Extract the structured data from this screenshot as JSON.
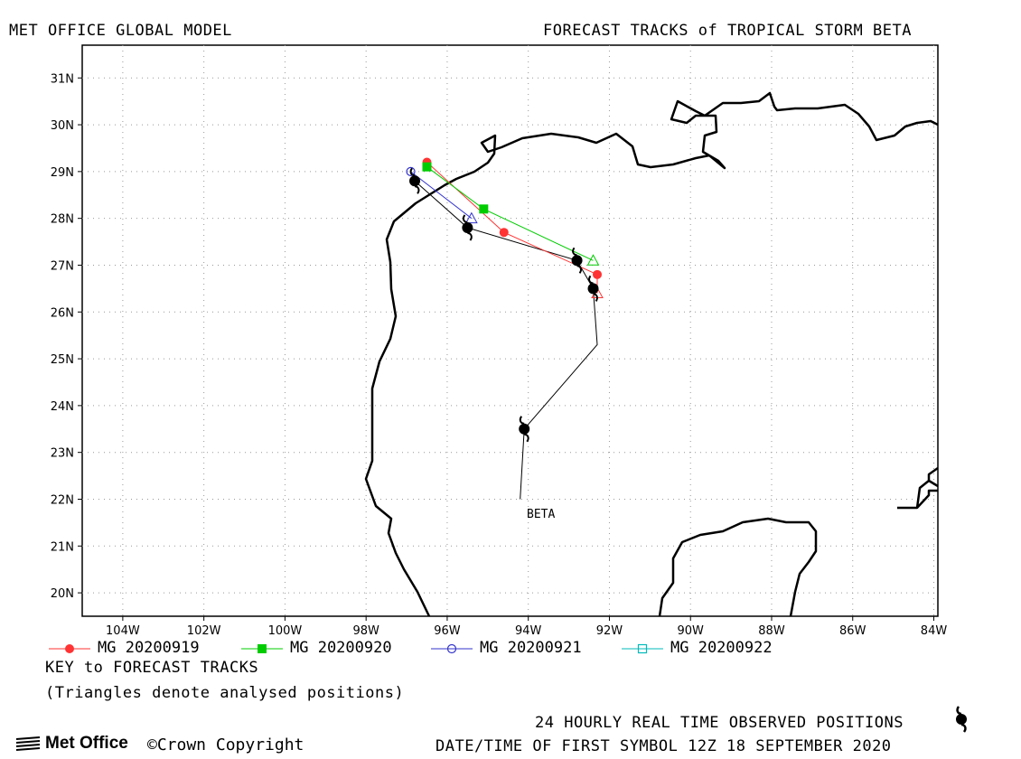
{
  "header": {
    "left_title": "MET OFFICE GLOBAL MODEL",
    "right_title": "FORECAST TRACKS of TROPICAL STORM BETA"
  },
  "map": {
    "lon_range": [
      -105,
      -83.9
    ],
    "lat_range": [
      19.5,
      31.7
    ],
    "lat_labels": [
      "31N",
      "30N",
      "29N",
      "28N",
      "27N",
      "26N",
      "25N",
      "24N",
      "23N",
      "22N",
      "21N",
      "20N"
    ],
    "lon_labels": [
      "104W",
      "102W",
      "100W",
      "98W",
      "96W",
      "94W",
      "92W",
      "90W",
      "88W",
      "86W",
      "84W"
    ],
    "storm_label": "BETA",
    "grid": "dotted"
  },
  "legend": {
    "items": [
      {
        "label": "MG 20200919",
        "color": "#ff3333",
        "marker": "filled-circle"
      },
      {
        "label": "MG 20200920",
        "color": "#00cc00",
        "marker": "filled-square"
      },
      {
        "label": "MG 20200921",
        "color": "#3333cc",
        "marker": "open-circle"
      },
      {
        "label": "MG 20200922",
        "color": "#00bbbb",
        "marker": "open-square"
      }
    ],
    "key_title": "KEY to FORECAST TRACKS",
    "key_note": "(Triangles denote analysed positions)"
  },
  "footer": {
    "brand": "Met Office",
    "copyright": "©Crown Copyright",
    "observed_note": "24 HOURLY REAL TIME OBSERVED POSITIONS",
    "datetime_note": "DATE/TIME OF FIRST SYMBOL 12Z 18 SEPTEMBER 2020"
  },
  "tracks": {
    "observed": [
      [
        -94.1,
        23.5
      ],
      [
        -92.4,
        26.5
      ],
      [
        -92.8,
        27.1
      ],
      [
        -95.5,
        27.8
      ],
      [
        -96.8,
        28.8
      ]
    ],
    "observed_tail": [
      [
        -94.2,
        22.0
      ],
      [
        -94.1,
        23.5
      ],
      [
        -92.3,
        25.3
      ],
      [
        -92.4,
        26.5
      ],
      [
        -92.8,
        27.1
      ],
      [
        -95.5,
        27.8
      ],
      [
        -96.8,
        28.8
      ]
    ],
    "forecasts": [
      {
        "name": "MG 20200919",
        "color": "#ff3333",
        "triangle": [
          -92.3,
          26.4
        ],
        "points": [
          [
            -92.3,
            26.8
          ],
          [
            -94.6,
            27.7
          ],
          [
            -96.5,
            29.2
          ]
        ]
      },
      {
        "name": "MG 20200920",
        "color": "#00cc00",
        "triangle": [
          -92.4,
          27.1
        ],
        "points": [
          [
            -95.1,
            28.2
          ],
          [
            -96.5,
            29.1
          ]
        ]
      },
      {
        "name": "MG 20200921",
        "color": "#3333cc",
        "triangle": [
          -95.4,
          28.0
        ],
        "points": [
          [
            -96.9,
            29.0
          ]
        ]
      }
    ]
  }
}
